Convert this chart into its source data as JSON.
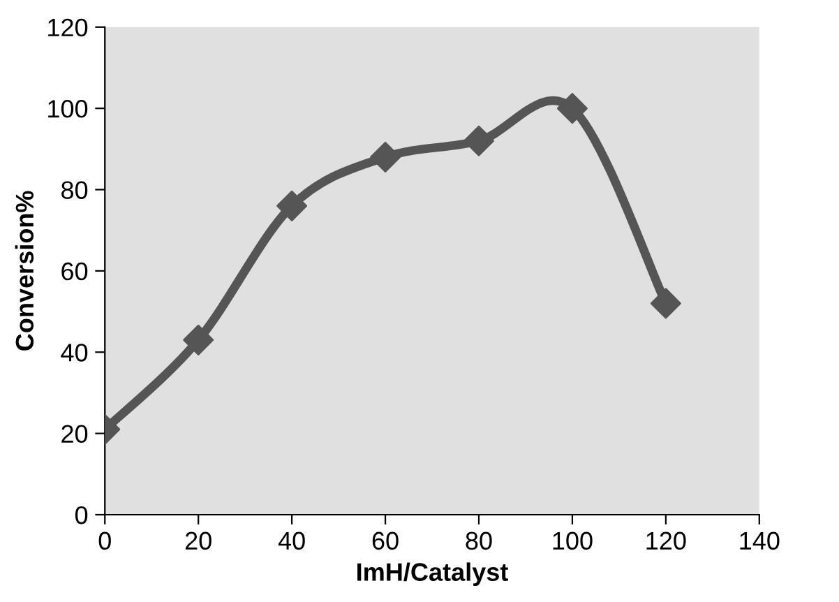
{
  "chart_data": {
    "type": "line",
    "xlabel": "ImH/Catalyst",
    "ylabel": "Conversion%",
    "x": [
      0,
      20,
      40,
      60,
      80,
      100,
      120
    ],
    "series": [
      {
        "color": "#555555",
        "values": [
          21,
          43,
          76,
          88,
          92,
          100,
          52
        ]
      }
    ],
    "xlim": [
      0,
      140
    ],
    "xticks": [
      0,
      20,
      40,
      60,
      80,
      100,
      120,
      140
    ],
    "ylim": [
      0,
      120
    ],
    "yticks": [
      0,
      20,
      40,
      60,
      80,
      100,
      120
    ],
    "grid": false,
    "legend": false,
    "marker": "diamond",
    "line_style": "solid"
  }
}
